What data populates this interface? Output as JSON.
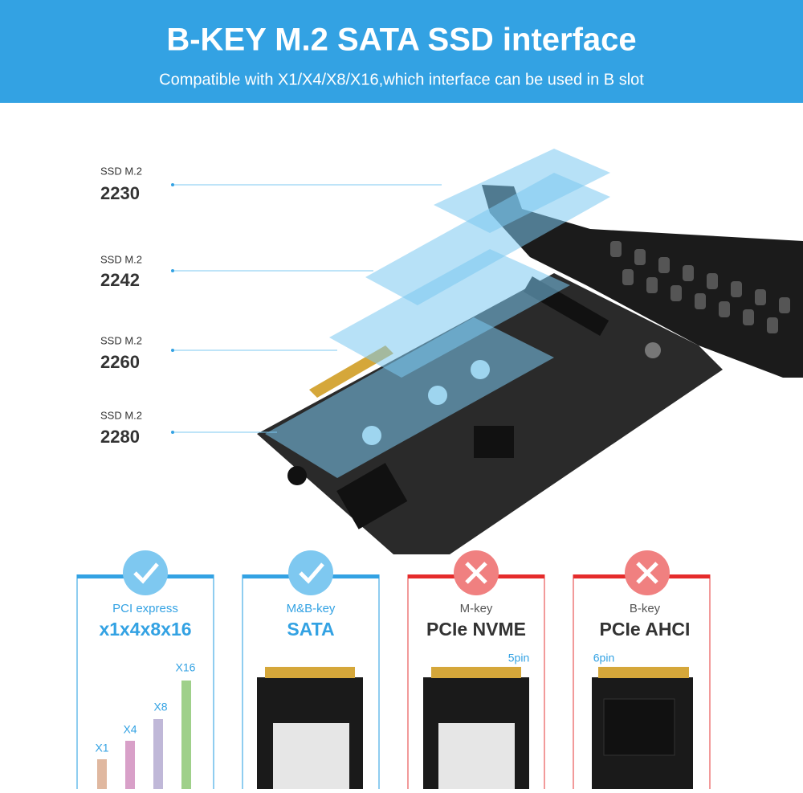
{
  "header": {
    "title": "B-KEY M.2 SATA SSD interface",
    "subtitle": "Compatible with X1/X4/X8/X16,which interface can be used in B slot"
  },
  "ssd_labels": [
    {
      "prefix": "SSD M.2",
      "size": "2230"
    },
    {
      "prefix": "SSD M.2",
      "size": "2242"
    },
    {
      "prefix": "SSD M.2",
      "size": "2260"
    },
    {
      "prefix": "SSD M.2",
      "size": "2280"
    }
  ],
  "cards": [
    {
      "label": "PCI express",
      "title": "x1x4x8x16",
      "slots": [
        "X1",
        "X4",
        "X8",
        "X16"
      ]
    },
    {
      "label": "M&B-key",
      "title": "SATA"
    },
    {
      "label": "M-key",
      "title": "PCIe NVME",
      "pin": "5pin"
    },
    {
      "label": "B-key",
      "title": "PCIe AHCI",
      "pin": "6pin"
    }
  ]
}
